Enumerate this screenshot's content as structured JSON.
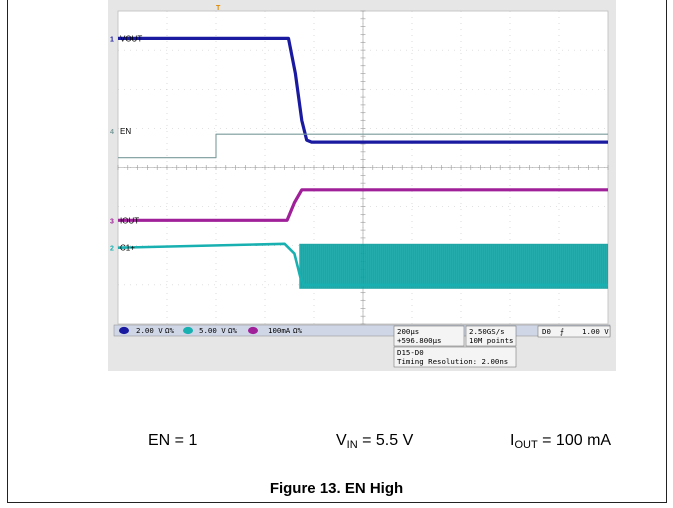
{
  "figure": {
    "caption": "Figure 13. EN High"
  },
  "conditions": {
    "en": "EN = 1",
    "vin_symbol": "V",
    "vin_sub": "IN",
    "vin_value": " = 5.5 V",
    "iout_symbol": "I",
    "iout_sub": "OUT",
    "iout_value": " = 100 mA"
  },
  "scope": {
    "trigger_marker": "T",
    "channels": [
      {
        "number": "1",
        "label": "VOUT",
        "color": "#1a1aa0",
        "scale": "2.00 V",
        "coupling": "Ω%"
      },
      {
        "number": "4",
        "label": "EN",
        "color": "#7a9a9a",
        "scale": "",
        "coupling": ""
      },
      {
        "number": "3",
        "label": "IOUT",
        "color": "#a0209a",
        "scale": "100mA",
        "coupling": "Ω%"
      },
      {
        "number": "2",
        "label": "C1+",
        "color": "#18b0b0",
        "scale": "5.00 V",
        "coupling": "Ω%"
      }
    ],
    "timebase": "200µs",
    "trigger_position": "+596.800µs",
    "sample_rate": "2.50GS/s",
    "record_length": "10M points",
    "trigger_source": "D0",
    "trigger_slope": "⨍",
    "trigger_level": "1.00 V",
    "digital_channels": "D15-D0",
    "timing_resolution": "Timing Resolution: 2.00ns"
  },
  "chart_data": {
    "type": "line",
    "title": "",
    "xlabel": "",
    "ylabel": "",
    "grid": true,
    "x_divisions": 10,
    "y_divisions": 8,
    "x_unit": "div",
    "series": [
      {
        "name": "VOUT",
        "points": [
          [
            0,
            7.3
          ],
          [
            3.48,
            7.3
          ],
          [
            3.62,
            6.4
          ],
          [
            3.75,
            5.2
          ],
          [
            3.85,
            4.7
          ],
          [
            3.95,
            4.65
          ],
          [
            10,
            4.65
          ]
        ]
      },
      {
        "name": "EN",
        "points": [
          [
            0,
            4.25
          ],
          [
            2.0,
            4.25
          ],
          [
            2.0,
            4.85
          ],
          [
            10,
            4.85
          ]
        ]
      },
      {
        "name": "IOUT",
        "points": [
          [
            0,
            2.65
          ],
          [
            3.45,
            2.65
          ],
          [
            3.6,
            3.1
          ],
          [
            3.75,
            3.43
          ],
          [
            10,
            3.43
          ]
        ]
      },
      {
        "name": "C1+",
        "points": [
          [
            0,
            1.95
          ],
          [
            3.4,
            2.05
          ],
          [
            3.6,
            1.8
          ],
          [
            3.72,
            1.2
          ],
          [
            3.8,
            1.0
          ],
          [
            10,
            1.0
          ]
        ],
        "band_after_x": 3.7,
        "band_range": [
          0.9,
          2.05
        ]
      }
    ]
  }
}
